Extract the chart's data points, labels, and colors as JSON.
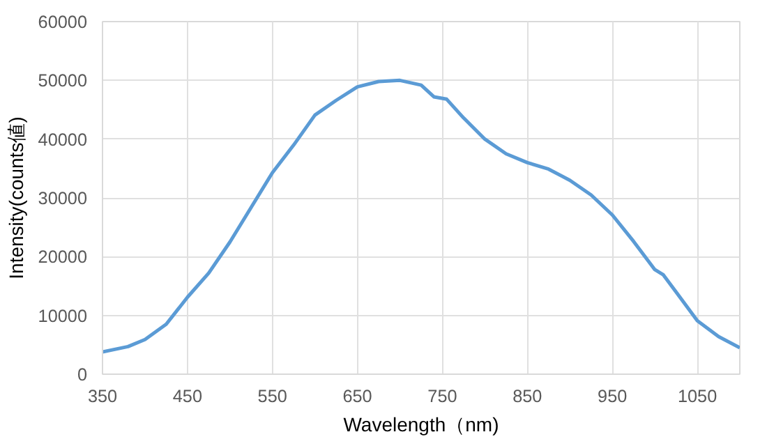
{
  "chart_data": {
    "type": "line",
    "xlabel": "Wavelength（nm)",
    "ylabel": "Intensity(counts値)",
    "x": [
      350,
      380,
      400,
      425,
      450,
      475,
      500,
      525,
      550,
      575,
      600,
      625,
      650,
      675,
      700,
      725,
      740,
      755,
      775,
      800,
      825,
      850,
      875,
      900,
      925,
      950,
      975,
      1000,
      1010,
      1025,
      1050,
      1075,
      1100
    ],
    "series": [
      {
        "color": "#5b9bd5",
        "values": [
          3800,
          4700,
          5900,
          8500,
          13100,
          17200,
          22500,
          28400,
          34300,
          39000,
          44100,
          46600,
          48900,
          49800,
          50000,
          49200,
          47200,
          46800,
          43600,
          40000,
          37500,
          36000,
          34900,
          33000,
          30500,
          27100,
          22600,
          17800,
          16900,
          14000,
          9100,
          6400,
          4500
        ]
      }
    ],
    "xlim": [
      350,
      1100
    ],
    "xticks": [
      350,
      450,
      550,
      650,
      750,
      850,
      950,
      1050
    ],
    "ylim": [
      0,
      60000
    ],
    "yticks": [
      0,
      10000,
      20000,
      30000,
      40000,
      50000,
      60000
    ],
    "grid": true,
    "marker": "none",
    "line_style": "solid"
  }
}
